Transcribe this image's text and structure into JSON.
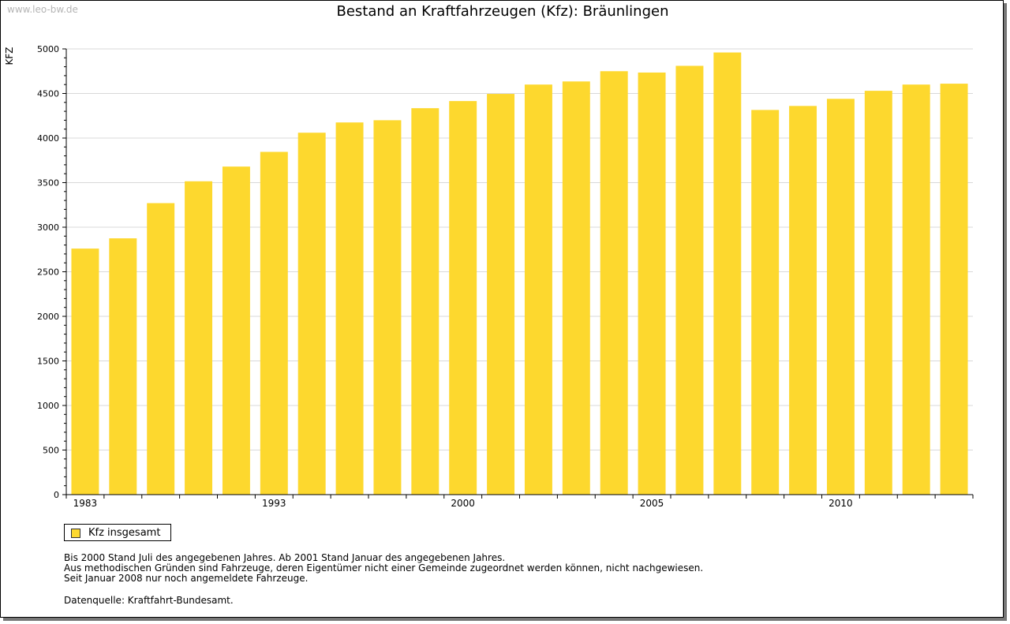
{
  "watermark": "www.leo-bw.de",
  "colors": {
    "bar": "#fdd82e",
    "grid": "#d9d9d9",
    "axis": "#000000"
  },
  "legend": {
    "label": "Kfz insgesamt"
  },
  "notes": [
    "Bis 2000 Stand Juli des angegebenen Jahres. Ab 2001 Stand Januar des angegebenen Jahres.",
    "Aus methodischen Gründen sind Fahrzeuge, deren Eigentümer nicht einer Gemeinde zugeordnet werden können, nicht nachgewiesen.",
    "Seit Januar 2008 nur noch angemeldete Fahrzeuge."
  ],
  "source": "Datenquelle: Kraftfahrt-Bundesamt.",
  "chart_data": {
    "type": "bar",
    "title": "Bestand an Kraftfahrzeugen (Kfz): Bräunlingen",
    "ylabel": "KFZ",
    "ylim": [
      0,
      5000
    ],
    "yticks": [
      0,
      500,
      1000,
      1500,
      2000,
      2500,
      3000,
      3500,
      4000,
      4500,
      5000
    ],
    "grid": true,
    "legend_position": "bottom-left",
    "x_tick_labels": [
      {
        "index": 0,
        "label": "1983"
      },
      {
        "index": 5,
        "label": "1993"
      },
      {
        "index": 10,
        "label": "2000"
      },
      {
        "index": 15,
        "label": "2005"
      },
      {
        "index": 20,
        "label": "2010"
      }
    ],
    "categories": [
      "1983",
      "",
      "",
      "",
      "",
      "1993",
      "",
      "",
      "",
      "",
      "2000",
      "",
      "",
      "",
      "",
      "2005",
      "",
      "",
      "",
      "",
      "2010",
      "",
      "",
      ""
    ],
    "series": [
      {
        "name": "Kfz insgesamt",
        "values": [
          2760,
          2875,
          3270,
          3515,
          3680,
          3845,
          4060,
          4175,
          4200,
          4335,
          4415,
          4495,
          4600,
          4635,
          4750,
          4735,
          4810,
          4960,
          4315,
          4360,
          4440,
          4530,
          4600,
          4610
        ]
      }
    ]
  }
}
